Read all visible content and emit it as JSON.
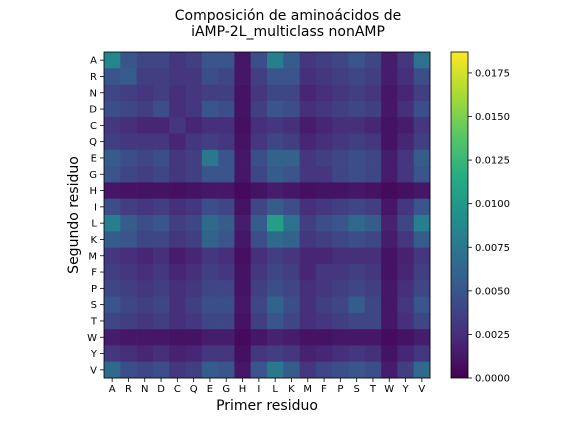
{
  "chart_data": {
    "type": "heatmap",
    "title_lines": [
      "Composición de aminoácidos de",
      "iAMP-2L_multiclass nonAMP"
    ],
    "xlabel": "Primer residuo",
    "ylabel": "Segundo residuo",
    "x_categories": [
      "A",
      "R",
      "N",
      "D",
      "C",
      "Q",
      "E",
      "G",
      "H",
      "I",
      "L",
      "K",
      "M",
      "F",
      "P",
      "S",
      "T",
      "W",
      "Y",
      "V"
    ],
    "y_categories": [
      "A",
      "R",
      "N",
      "D",
      "C",
      "Q",
      "E",
      "G",
      "H",
      "I",
      "L",
      "K",
      "M",
      "F",
      "P",
      "S",
      "T",
      "W",
      "Y",
      "V"
    ],
    "colormap": "viridis",
    "vmin": 0.0,
    "vmax": 0.0187,
    "colorbar_ticks": [
      0.0,
      0.0025,
      0.005,
      0.0075,
      0.01,
      0.0125,
      0.015,
      0.0175
    ],
    "colorbar_tick_labels": [
      "0.0000",
      "0.0025",
      "0.0050",
      "0.0075",
      "0.0100",
      "0.0125",
      "0.0150",
      "0.0175"
    ],
    "values": [
      [
        0.0085,
        0.005,
        0.004,
        0.004,
        0.003,
        0.0035,
        0.005,
        0.005,
        0.0012,
        0.0045,
        0.008,
        0.0055,
        0.003,
        0.0035,
        0.004,
        0.005,
        0.004,
        0.0015,
        0.003,
        0.007
      ],
      [
        0.005,
        0.0055,
        0.0035,
        0.0035,
        0.003,
        0.003,
        0.0045,
        0.004,
        0.0012,
        0.0035,
        0.005,
        0.005,
        0.0025,
        0.003,
        0.0035,
        0.004,
        0.0035,
        0.0015,
        0.0025,
        0.0045
      ],
      [
        0.004,
        0.0035,
        0.003,
        0.0035,
        0.0025,
        0.003,
        0.0035,
        0.0035,
        0.001,
        0.003,
        0.004,
        0.004,
        0.002,
        0.0025,
        0.003,
        0.0035,
        0.003,
        0.0012,
        0.002,
        0.0035
      ],
      [
        0.0045,
        0.004,
        0.0035,
        0.0045,
        0.0025,
        0.003,
        0.005,
        0.0045,
        0.001,
        0.0035,
        0.005,
        0.0045,
        0.0025,
        0.003,
        0.0035,
        0.004,
        0.0035,
        0.0012,
        0.0025,
        0.0045
      ],
      [
        0.003,
        0.0025,
        0.002,
        0.002,
        0.003,
        0.002,
        0.0025,
        0.0025,
        0.0008,
        0.0025,
        0.003,
        0.0025,
        0.0015,
        0.002,
        0.0025,
        0.0025,
        0.002,
        0.001,
        0.0015,
        0.003
      ],
      [
        0.0035,
        0.003,
        0.003,
        0.003,
        0.002,
        0.003,
        0.0035,
        0.003,
        0.001,
        0.003,
        0.004,
        0.0035,
        0.002,
        0.0025,
        0.003,
        0.0035,
        0.003,
        0.001,
        0.002,
        0.0035
      ],
      [
        0.0055,
        0.0045,
        0.004,
        0.0045,
        0.003,
        0.0035,
        0.0075,
        0.005,
        0.0012,
        0.0045,
        0.006,
        0.006,
        0.003,
        0.0035,
        0.004,
        0.0045,
        0.004,
        0.0015,
        0.003,
        0.0055
      ],
      [
        0.005,
        0.004,
        0.0035,
        0.004,
        0.003,
        0.0035,
        0.005,
        0.005,
        0.0012,
        0.004,
        0.0055,
        0.005,
        0.003,
        0.003,
        0.004,
        0.0045,
        0.004,
        0.0015,
        0.003,
        0.005
      ],
      [
        0.0012,
        0.001,
        0.001,
        0.001,
        0.0008,
        0.001,
        0.0012,
        0.0012,
        0.0005,
        0.001,
        0.0015,
        0.0012,
        0.0008,
        0.001,
        0.001,
        0.0012,
        0.001,
        0.0005,
        0.0008,
        0.0012
      ],
      [
        0.0045,
        0.0035,
        0.003,
        0.0035,
        0.0025,
        0.003,
        0.0045,
        0.004,
        0.001,
        0.004,
        0.0055,
        0.0045,
        0.0025,
        0.003,
        0.0035,
        0.004,
        0.0035,
        0.0012,
        0.003,
        0.005
      ],
      [
        0.008,
        0.0055,
        0.0045,
        0.005,
        0.0035,
        0.004,
        0.0065,
        0.0055,
        0.0015,
        0.0055,
        0.0105,
        0.007,
        0.0035,
        0.0045,
        0.005,
        0.0065,
        0.0055,
        0.0018,
        0.004,
        0.008
      ],
      [
        0.0055,
        0.005,
        0.004,
        0.004,
        0.003,
        0.0035,
        0.006,
        0.005,
        0.0012,
        0.0045,
        0.0065,
        0.006,
        0.003,
        0.0035,
        0.004,
        0.0045,
        0.004,
        0.0015,
        0.003,
        0.0055
      ],
      [
        0.003,
        0.0025,
        0.002,
        0.0025,
        0.0015,
        0.002,
        0.003,
        0.0025,
        0.0008,
        0.0025,
        0.0035,
        0.003,
        0.002,
        0.002,
        0.0025,
        0.0025,
        0.0025,
        0.001,
        0.0018,
        0.003
      ],
      [
        0.0035,
        0.003,
        0.0025,
        0.003,
        0.002,
        0.0025,
        0.0035,
        0.003,
        0.001,
        0.003,
        0.004,
        0.0035,
        0.002,
        0.003,
        0.003,
        0.0035,
        0.003,
        0.001,
        0.002,
        0.0035
      ],
      [
        0.004,
        0.0035,
        0.003,
        0.0035,
        0.0025,
        0.003,
        0.004,
        0.004,
        0.001,
        0.0035,
        0.0045,
        0.004,
        0.0025,
        0.003,
        0.0035,
        0.004,
        0.0035,
        0.0012,
        0.0025,
        0.004
      ],
      [
        0.005,
        0.004,
        0.0035,
        0.004,
        0.0025,
        0.0035,
        0.0045,
        0.0045,
        0.0012,
        0.004,
        0.006,
        0.0045,
        0.0025,
        0.0035,
        0.004,
        0.0055,
        0.004,
        0.0012,
        0.003,
        0.005
      ],
      [
        0.004,
        0.0035,
        0.003,
        0.0035,
        0.0025,
        0.003,
        0.004,
        0.004,
        0.001,
        0.0035,
        0.005,
        0.004,
        0.0025,
        0.003,
        0.0035,
        0.004,
        0.004,
        0.0012,
        0.0025,
        0.004
      ],
      [
        0.0015,
        0.0012,
        0.0012,
        0.0012,
        0.001,
        0.001,
        0.0015,
        0.0015,
        0.0005,
        0.0012,
        0.0018,
        0.0015,
        0.001,
        0.001,
        0.0012,
        0.0012,
        0.0012,
        0.0006,
        0.001,
        0.0015
      ],
      [
        0.003,
        0.0025,
        0.002,
        0.0025,
        0.0018,
        0.002,
        0.003,
        0.003,
        0.0008,
        0.003,
        0.0035,
        0.003,
        0.0018,
        0.002,
        0.0025,
        0.003,
        0.0025,
        0.001,
        0.002,
        0.003
      ],
      [
        0.0065,
        0.0045,
        0.004,
        0.0045,
        0.003,
        0.0035,
        0.0055,
        0.005,
        0.0012,
        0.005,
        0.0075,
        0.0055,
        0.003,
        0.004,
        0.0045,
        0.005,
        0.0045,
        0.0015,
        0.0035,
        0.0065
      ]
    ]
  }
}
